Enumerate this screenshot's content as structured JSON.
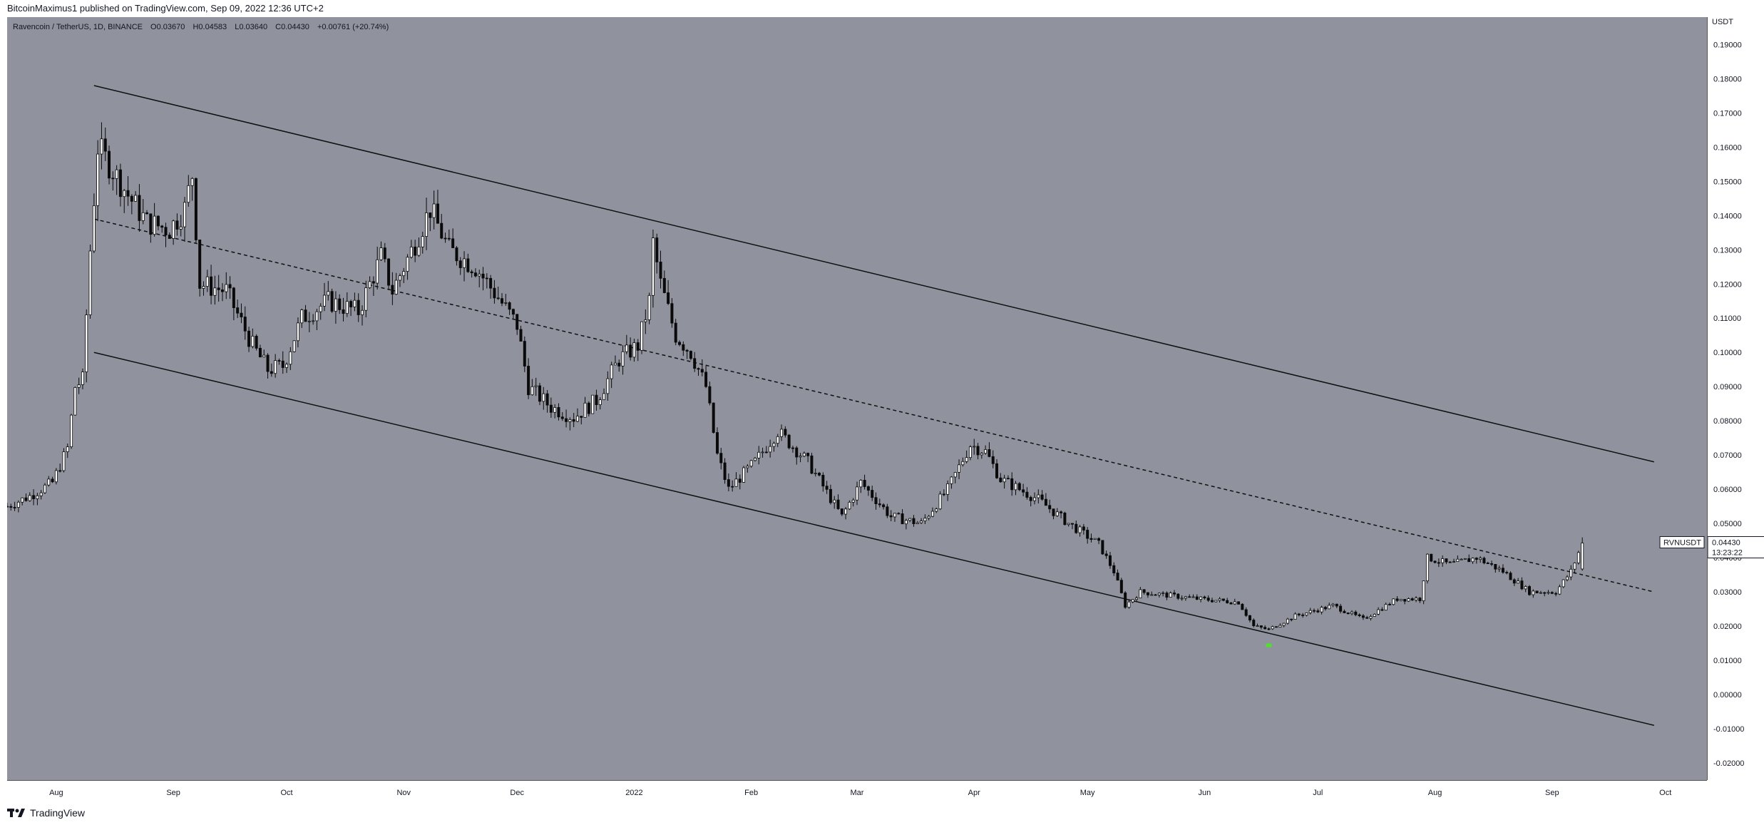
{
  "header": {
    "published_text": "BitcoinMaximus1 published on TradingView.com, Sep 09, 2022 12:36 UTC+2"
  },
  "legend": {
    "symbol": "Ravencoin / TetherUS, 1D, BINANCE",
    "open_label": "O",
    "open": "0.03670",
    "high_label": "H",
    "high": "0.04583",
    "low_label": "L",
    "low": "0.03640",
    "close_label": "C",
    "close": "0.04430",
    "change": "+0.00761 (+20.74%)"
  },
  "price_axis": {
    "currency": "USDT",
    "ticks": [
      "0.19000",
      "0.18000",
      "0.17000",
      "0.16000",
      "0.15000",
      "0.14000",
      "0.13000",
      "0.12000",
      "0.11000",
      "0.10000",
      "0.09000",
      "0.08000",
      "0.07000",
      "0.06000",
      "0.05000",
      "0.04000",
      "0.03000",
      "0.02000",
      "0.01000",
      "0.00000",
      "-0.01000",
      "-0.02000"
    ],
    "symbol_badge": "RVNUSDT",
    "last_price": "0.04430",
    "countdown": "13:23:22"
  },
  "time_axis": {
    "labels": [
      "Aug",
      "Sep",
      "Oct",
      "Nov",
      "Dec",
      "2022",
      "Feb",
      "Mar",
      "Apr",
      "May",
      "Jun",
      "Jul",
      "Aug",
      "Sep",
      "Oct"
    ]
  },
  "footer": {
    "brand": "TradingView"
  },
  "colors": {
    "chart_bg": "#90939d",
    "candle": "#0a0a0a",
    "marker": "#4fe02a",
    "channel": "#101010"
  },
  "chart_data": {
    "type": "candlestick",
    "title": "Ravencoin / TetherUS, 1D, BINANCE",
    "ylabel": "USDT",
    "ylim": [
      -0.025,
      0.198
    ],
    "xlim": [
      "2021-07-19",
      "2022-10-12"
    ],
    "x_ticks": [
      "2021-08-01",
      "2021-09-01",
      "2021-10-01",
      "2021-11-01",
      "2021-12-01",
      "2022-01-01",
      "2022-02-01",
      "2022-03-01",
      "2022-04-01",
      "2022-05-01",
      "2022-06-01",
      "2022-07-01",
      "2022-08-01",
      "2022-09-01",
      "2022-10-01"
    ],
    "price_keypoints": [
      [
        "2021-07-19",
        0.055
      ],
      [
        "2021-07-25",
        0.058
      ],
      [
        "2021-07-31",
        0.062
      ],
      [
        "2021-08-04",
        0.072
      ],
      [
        "2021-08-06",
        0.09
      ],
      [
        "2021-08-08",
        0.092
      ],
      [
        "2021-08-10",
        0.13
      ],
      [
        "2021-08-12",
        0.16
      ],
      [
        "2021-08-15",
        0.155
      ],
      [
        "2021-08-20",
        0.146
      ],
      [
        "2021-08-25",
        0.138
      ],
      [
        "2021-08-31",
        0.136
      ],
      [
        "2021-09-04",
        0.142
      ],
      [
        "2021-09-06",
        0.152
      ],
      [
        "2021-09-08",
        0.12
      ],
      [
        "2021-09-15",
        0.118
      ],
      [
        "2021-09-22",
        0.102
      ],
      [
        "2021-09-26",
        0.095
      ],
      [
        "2021-09-30",
        0.096
      ],
      [
        "2021-10-05",
        0.11
      ],
      [
        "2021-10-12",
        0.115
      ],
      [
        "2021-10-20",
        0.112
      ],
      [
        "2021-10-26",
        0.128
      ],
      [
        "2021-10-29",
        0.118
      ],
      [
        "2021-11-04",
        0.132
      ],
      [
        "2021-11-08",
        0.142
      ],
      [
        "2021-11-13",
        0.13
      ],
      [
        "2021-11-20",
        0.125
      ],
      [
        "2021-11-26",
        0.116
      ],
      [
        "2021-12-01",
        0.108
      ],
      [
        "2021-12-04",
        0.09
      ],
      [
        "2021-12-10",
        0.084
      ],
      [
        "2021-12-16",
        0.081
      ],
      [
        "2021-12-22",
        0.086
      ],
      [
        "2021-12-28",
        0.098
      ],
      [
        "2022-01-02",
        0.102
      ],
      [
        "2022-01-05",
        0.115
      ],
      [
        "2022-01-06",
        0.132
      ],
      [
        "2022-01-08",
        0.12
      ],
      [
        "2022-01-12",
        0.105
      ],
      [
        "2022-01-16",
        0.1
      ],
      [
        "2022-01-20",
        0.09
      ],
      [
        "2022-01-23",
        0.07
      ],
      [
        "2022-01-26",
        0.06
      ],
      [
        "2022-02-02",
        0.068
      ],
      [
        "2022-02-08",
        0.077
      ],
      [
        "2022-02-16",
        0.068
      ],
      [
        "2022-02-25",
        0.052
      ],
      [
        "2022-03-02",
        0.062
      ],
      [
        "2022-03-10",
        0.052
      ],
      [
        "2022-03-18",
        0.05
      ],
      [
        "2022-03-25",
        0.06
      ],
      [
        "2022-03-31",
        0.073
      ],
      [
        "2022-04-04",
        0.071
      ],
      [
        "2022-04-08",
        0.063
      ],
      [
        "2022-04-18",
        0.057
      ],
      [
        "2022-04-26",
        0.05
      ],
      [
        "2022-05-04",
        0.044
      ],
      [
        "2022-05-08",
        0.036
      ],
      [
        "2022-05-11",
        0.026
      ],
      [
        "2022-05-15",
        0.03
      ],
      [
        "2022-05-30",
        0.028
      ],
      [
        "2022-06-10",
        0.027
      ],
      [
        "2022-06-14",
        0.02
      ],
      [
        "2022-06-18",
        0.019
      ],
      [
        "2022-06-25",
        0.023
      ],
      [
        "2022-07-05",
        0.026
      ],
      [
        "2022-07-13",
        0.022
      ],
      [
        "2022-07-22",
        0.028
      ],
      [
        "2022-07-28",
        0.028
      ],
      [
        "2022-07-30",
        0.04
      ],
      [
        "2022-08-05",
        0.038
      ],
      [
        "2022-08-12",
        0.04
      ],
      [
        "2022-08-19",
        0.036
      ],
      [
        "2022-08-26",
        0.03
      ],
      [
        "2022-09-02",
        0.03
      ],
      [
        "2022-09-06",
        0.036
      ],
      [
        "2022-09-09",
        0.0443
      ]
    ],
    "channel": {
      "upper": [
        [
          "2021-08-11",
          0.178
        ],
        [
          "2022-09-28",
          0.068
        ]
      ],
      "middle": [
        [
          "2021-08-11",
          0.139
        ],
        [
          "2022-09-28",
          0.03
        ]
      ],
      "lower": [
        [
          "2021-08-11",
          0.1
        ],
        [
          "2022-09-28",
          -0.009
        ]
      ]
    },
    "marker": {
      "date": "2022-06-18",
      "value": 0.0145
    }
  }
}
